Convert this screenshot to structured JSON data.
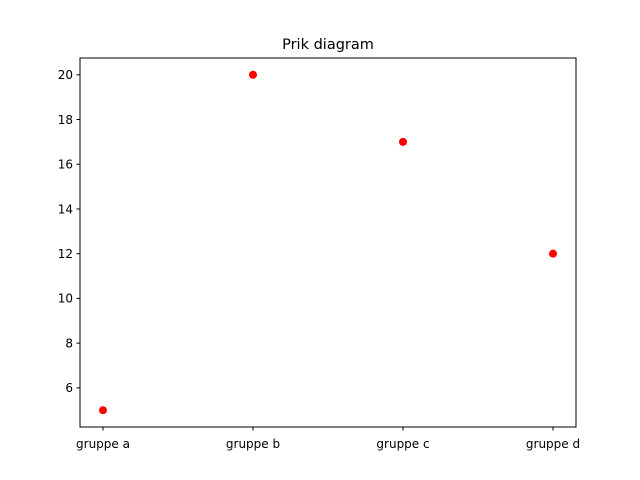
{
  "chart_data": {
    "type": "scatter",
    "title": "Prik diagram",
    "xlabel": "",
    "ylabel": "",
    "categories": [
      "gruppe a",
      "gruppe b",
      "gruppe c",
      "gruppe d"
    ],
    "values": [
      5,
      20,
      17,
      12
    ],
    "ylim": [
      4.25,
      20.75
    ],
    "yticks": [
      6,
      8,
      10,
      12,
      14,
      16,
      18,
      20
    ],
    "grid": false,
    "marker_color": "#ff0000"
  }
}
